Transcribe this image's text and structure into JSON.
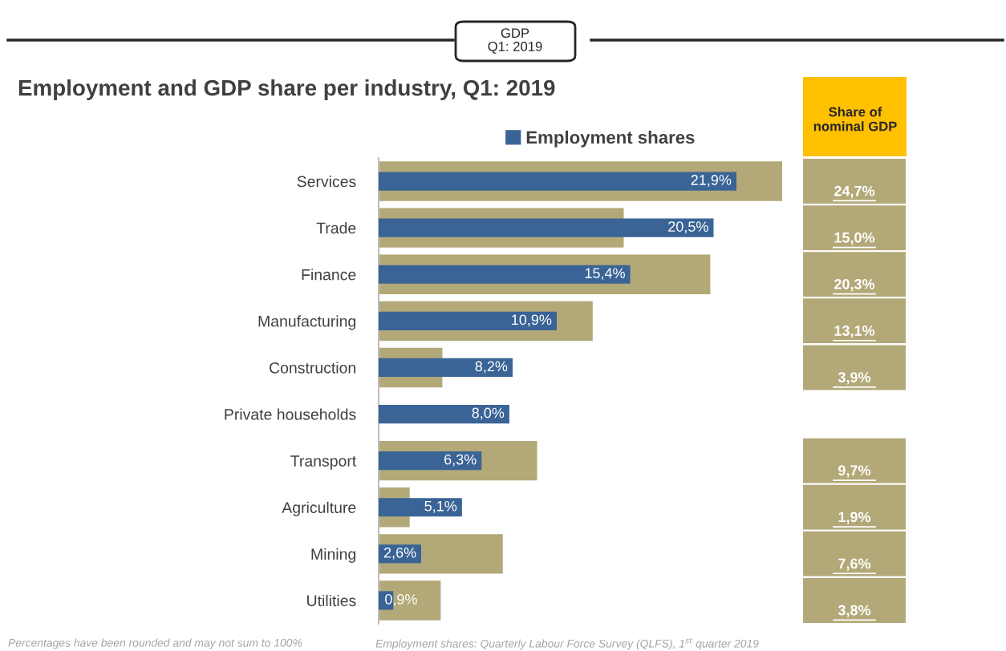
{
  "chart_data": {
    "type": "bar",
    "orientation": "horizontal",
    "title": "Employment and GDP share per industry, Q1: 2019",
    "legend": "top",
    "categories": [
      "Services",
      "Trade",
      "Finance",
      "Manufacturing",
      "Construction",
      "Private households",
      "Transport",
      "Agriculture",
      "Mining",
      "Utilities"
    ],
    "series": [
      {
        "color": "#b3a878",
        "values": [
          24.7,
          15.0,
          20.3,
          13.1,
          3.9,
          null,
          9.7,
          1.9,
          7.6,
          3.8
        ],
        "value_labels": [
          "24,7%",
          "15,0%",
          "20,3%",
          "13,1%",
          "3,9%",
          null,
          "9,7%",
          "1,9%",
          "7,6%",
          "3,8%"
        ]
      },
      {
        "name": "Employment shares",
        "color": "#3a6496",
        "values": [
          21.9,
          20.5,
          15.4,
          10.9,
          8.2,
          8.0,
          6.3,
          5.1,
          2.6,
          0.9
        ],
        "value_labels": [
          "21,9%",
          "20,5%",
          "15,4%",
          "10,9%",
          "8,2%",
          "8,0%",
          "6,3%",
          "5,1%",
          "2,6%",
          "0,9%"
        ]
      }
    ],
    "annotations": [
      "GDP\nQ1: 2019",
      "Share of\nnominal GDP",
      "Percentages have been rounded and may not sum to 100%",
      "Employment shares: Quarterly Labour Force Survey (QLFS), 1$^{st}$ quarter 2019"
    ]
  }
}
